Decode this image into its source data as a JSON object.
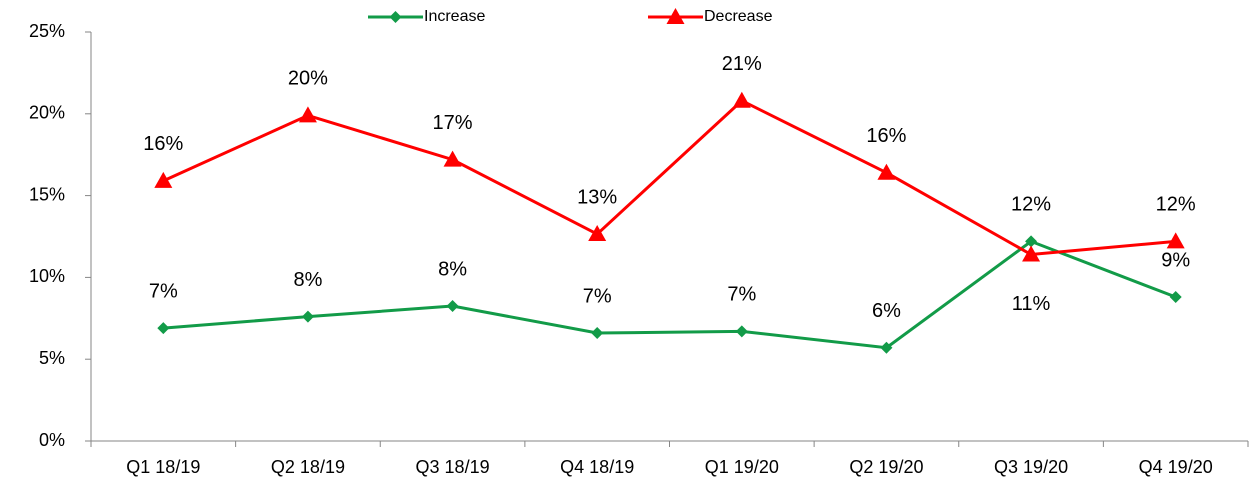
{
  "chart_data": {
    "type": "line",
    "categories": [
      "Q1 18/19",
      "Q2 18/19",
      "Q3 18/19",
      "Q4 18/19",
      "Q1 19/20",
      "Q2 19/20",
      "Q3 19/20",
      "Q4 19/20"
    ],
    "series": [
      {
        "name": "Increase",
        "color": "#129b48",
        "marker": "diamond",
        "values": [
          6.9,
          7.6,
          8.25,
          6.6,
          6.7,
          5.7,
          12.2,
          8.8
        ],
        "value_labels": [
          "7%",
          "8%",
          "8%",
          "7%",
          "7%",
          "6%",
          "12%",
          "9%"
        ]
      },
      {
        "name": "Decrease",
        "color": "#ff0000",
        "marker": "triangle",
        "values": [
          15.9,
          19.9,
          17.2,
          12.65,
          20.8,
          16.4,
          11.4,
          12.2
        ],
        "value_labels": [
          "16%",
          "20%",
          "17%",
          "13%",
          "21%",
          "16%",
          "11%",
          "12%"
        ]
      }
    ],
    "ylim": [
      0,
      25
    ],
    "yticks": [
      {
        "value": 0,
        "label": "0%"
      },
      {
        "value": 5,
        "label": "5%"
      },
      {
        "value": 10,
        "label": "10%"
      },
      {
        "value": 15,
        "label": "15%"
      },
      {
        "value": 20,
        "label": "20%"
      },
      {
        "value": 25,
        "label": "25%"
      }
    ],
    "grid": false,
    "legend": "top"
  }
}
